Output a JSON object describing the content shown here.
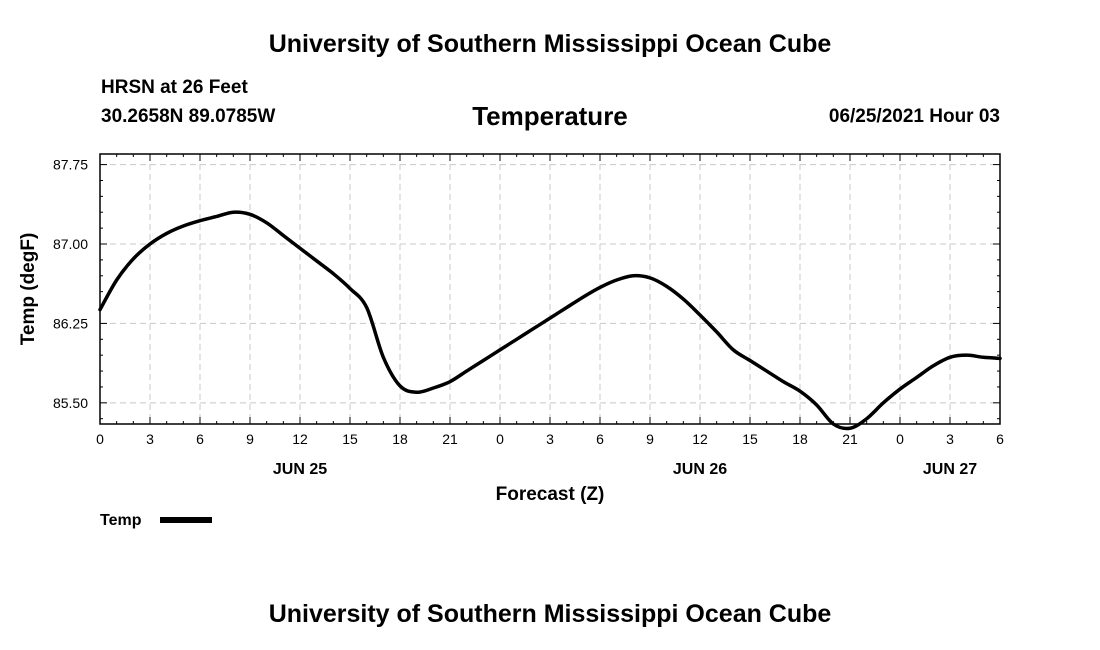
{
  "header": {
    "title_top": "University of Southern Mississippi Ocean Cube",
    "station_name": "HRSN at 26 Feet",
    "station_coords": "30.2658N  89.0785W",
    "chart_title": "Temperature",
    "forecast_time": "06/25/2021 Hour 03"
  },
  "footer": {
    "title_bottom": "University of Southern Mississippi Ocean Cube"
  },
  "colors": {
    "line": "#000000",
    "grid": "#c8c8c8",
    "axis": "#000000"
  },
  "chart_data": {
    "type": "line",
    "title": "Temperature",
    "xlabel": "Forecast (Z)",
    "ylabel": "Temp (degF)",
    "xlim": [
      0,
      54
    ],
    "ylim": [
      85.3,
      87.85
    ],
    "x_ticks": [
      0,
      3,
      6,
      9,
      12,
      15,
      18,
      21,
      24,
      27,
      30,
      33,
      36,
      39,
      42,
      45,
      48,
      51,
      54
    ],
    "x_tick_labels": [
      "0",
      "3",
      "6",
      "9",
      "12",
      "15",
      "18",
      "21",
      "0",
      "3",
      "6",
      "9",
      "12",
      "15",
      "18",
      "21",
      "0",
      "3",
      "6"
    ],
    "date_labels": [
      {
        "x": 12,
        "label": "JUN 25"
      },
      {
        "x": 36,
        "label": "JUN 26"
      },
      {
        "x": 51,
        "label": "JUN 27"
      }
    ],
    "y_ticks": [
      85.5,
      86.25,
      87.0,
      87.75
    ],
    "y_tick_labels": [
      "85.50",
      "86.25",
      "87.00",
      "87.75"
    ],
    "grid": true,
    "legend": {
      "position": "bottom-left",
      "entries": [
        "Temp"
      ]
    },
    "series": [
      {
        "name": "Temp",
        "x": [
          0,
          1,
          2,
          3,
          4,
          5,
          6,
          7,
          8,
          9,
          10,
          11,
          12,
          13,
          14,
          15,
          16,
          17,
          18,
          19,
          20,
          21,
          22,
          23,
          24,
          25,
          26,
          27,
          28,
          29,
          30,
          31,
          32,
          33,
          34,
          35,
          36,
          37,
          38,
          39,
          40,
          41,
          42,
          43,
          44,
          45,
          46,
          47,
          48,
          49,
          50,
          51,
          52,
          53,
          54
        ],
        "values": [
          86.38,
          86.66,
          86.86,
          87.0,
          87.1,
          87.17,
          87.22,
          87.26,
          87.3,
          87.28,
          87.2,
          87.08,
          86.96,
          86.84,
          86.72,
          86.58,
          86.4,
          85.93,
          85.66,
          85.6,
          85.64,
          85.7,
          85.8,
          85.9,
          86.0,
          86.1,
          86.2,
          86.3,
          86.4,
          86.5,
          86.59,
          86.66,
          86.7,
          86.68,
          86.6,
          86.48,
          86.33,
          86.17,
          86.0,
          85.9,
          85.8,
          85.7,
          85.61,
          85.48,
          85.3,
          85.26,
          85.35,
          85.5,
          85.63,
          85.74,
          85.85,
          85.93,
          85.95,
          85.93,
          85.92
        ]
      }
    ]
  }
}
